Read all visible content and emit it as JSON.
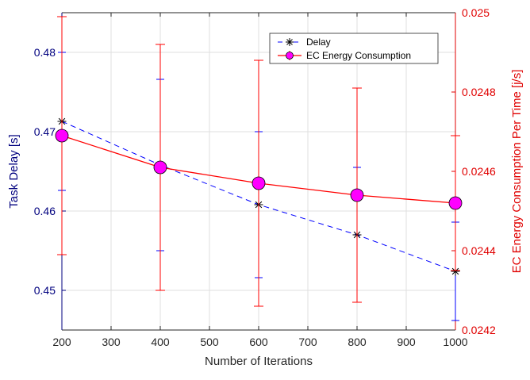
{
  "chart_data": {
    "type": "line",
    "xlabel": "Number of Iterations",
    "ylabel_left": "Task Delay [s]",
    "ylabel_right": "EC Energy Consumption Per Time [j/s]",
    "x": [
      200,
      400,
      600,
      800,
      1000
    ],
    "xlim": [
      200,
      1000
    ],
    "xticks": [
      "200",
      "300",
      "400",
      "500",
      "600",
      "700",
      "800",
      "900",
      "1000"
    ],
    "ylim_left": [
      0.445,
      0.485
    ],
    "yticks_left": [
      "0.45",
      "0.46",
      "0.47",
      "0.48"
    ],
    "ylim_right": [
      0.0242,
      0.025
    ],
    "yticks_right": [
      "0.0242",
      "0.0244",
      "0.0246",
      "0.0248",
      "0.025"
    ],
    "grid": true,
    "legend_position": "top-right",
    "series": [
      {
        "name": "Delay",
        "axis": "left",
        "color": "#0000ff",
        "line_style": "dashed",
        "marker": "asterisk",
        "values": [
          0.4713,
          0.4658,
          0.4608,
          0.457,
          0.4524
        ],
        "error": [
          0.0087,
          0.0108,
          0.0092,
          0.0085,
          0.0062
        ]
      },
      {
        "name": "EC Energy Consumption",
        "axis": "right",
        "color": "#ff0000",
        "marker_color": "#ff00ff",
        "line_style": "solid",
        "marker": "circle",
        "values": [
          0.02469,
          0.02461,
          0.02457,
          0.02454,
          0.02452
        ],
        "error": [
          0.0003,
          0.00031,
          0.00031,
          0.00027,
          0.00017
        ]
      }
    ]
  }
}
